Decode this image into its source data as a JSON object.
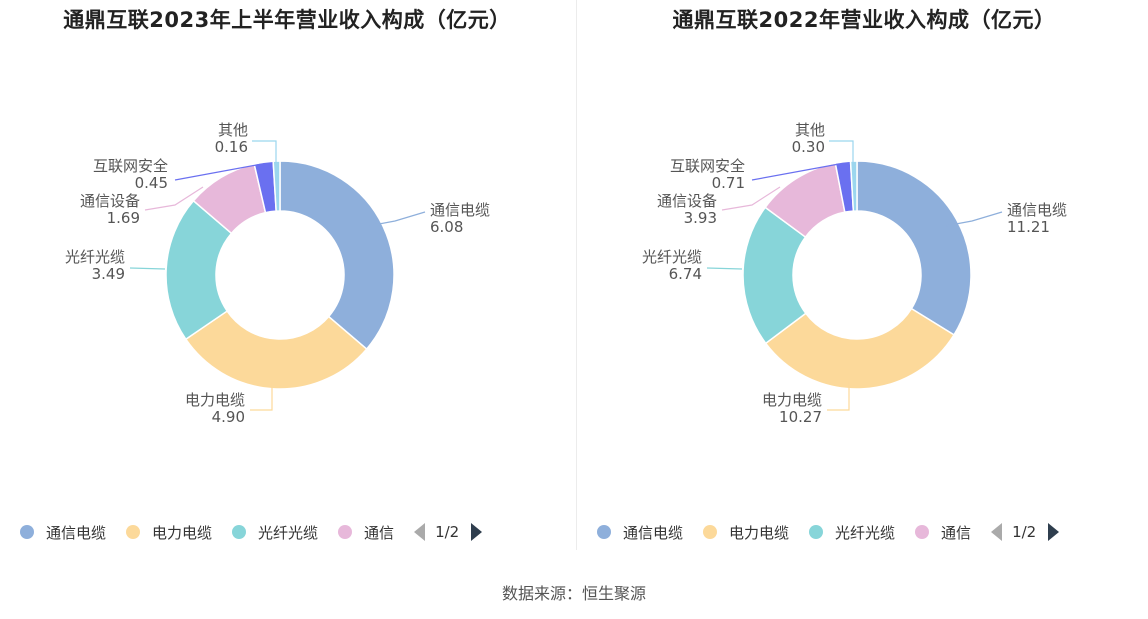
{
  "chart_data": [
    {
      "type": "pie",
      "title": "通鼎互联2023年上半年营业收入构成（亿元）",
      "categories": [
        "通信电缆",
        "电力电缆",
        "光纤光缆",
        "通信设备",
        "互联网安全",
        "其他"
      ],
      "values": [
        6.08,
        4.9,
        3.49,
        1.69,
        0.45,
        0.16
      ],
      "value_labels": [
        "6.08",
        "4.90",
        "3.49",
        "1.69",
        "0.45",
        "0.16"
      ],
      "colors": [
        "#8eafdb",
        "#fcd99a",
        "#87d5d9",
        "#e7b8da",
        "#6a70f0",
        "#9bd6ee"
      ],
      "legend": {
        "position": "bottom",
        "visible_items": [
          "通信电缆",
          "电力电缆",
          "光纤光缆",
          "通信"
        ],
        "page": "1/2"
      }
    },
    {
      "type": "pie",
      "title": "通鼎互联2022年营业收入构成（亿元）",
      "categories": [
        "通信电缆",
        "电力电缆",
        "光纤光缆",
        "通信设备",
        "互联网安全",
        "其他"
      ],
      "values": [
        11.21,
        10.27,
        6.74,
        3.93,
        0.71,
        0.3
      ],
      "value_labels": [
        "11.21",
        "10.27",
        "6.74",
        "3.93",
        "0.71",
        "0.30"
      ],
      "colors": [
        "#8eafdb",
        "#fcd99a",
        "#87d5d9",
        "#e7b8da",
        "#6a70f0",
        "#9bd6ee"
      ],
      "legend": {
        "position": "bottom",
        "visible_items": [
          "通信电缆",
          "电力电缆",
          "光纤光缆",
          "通信"
        ],
        "page": "1/2"
      }
    }
  ],
  "source": "数据来源：恒生聚源"
}
